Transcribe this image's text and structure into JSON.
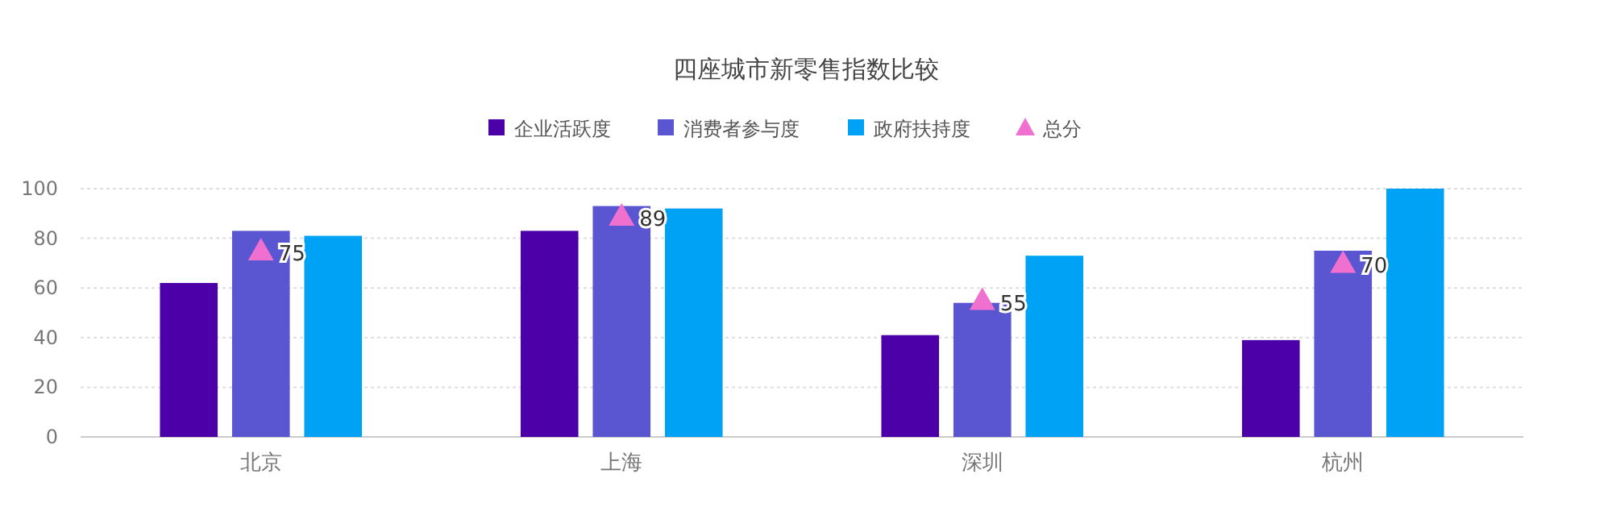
{
  "chart_data": {
    "type": "bar",
    "title": "四座城市新零售指数比较",
    "categories": [
      "北京",
      "上海",
      "深圳",
      "杭州"
    ],
    "series": [
      {
        "name": "企业活跃度",
        "color": "#4b00a8",
        "values": [
          62,
          83,
          41,
          39
        ]
      },
      {
        "name": "消费者参与度",
        "color": "#5a55d0",
        "values": [
          83,
          93,
          54,
          75
        ]
      },
      {
        "name": "政府扶持度",
        "color": "#00a2f5",
        "values": [
          81,
          92,
          73,
          100
        ]
      },
      {
        "name": "总分",
        "type": "scatter",
        "marker": "triangle",
        "color": "#f070d0",
        "x": [
          "北京",
          "上海",
          "深圳",
          "杭州"
        ],
        "values": [
          75,
          89,
          55,
          70
        ],
        "value_labels": [
          "75",
          "89",
          "55",
          "70"
        ]
      }
    ],
    "ylim": [
      0,
      100
    ],
    "yticks": [
      0,
      20,
      40,
      60,
      80,
      100
    ],
    "grid": "y",
    "legend": "top"
  }
}
